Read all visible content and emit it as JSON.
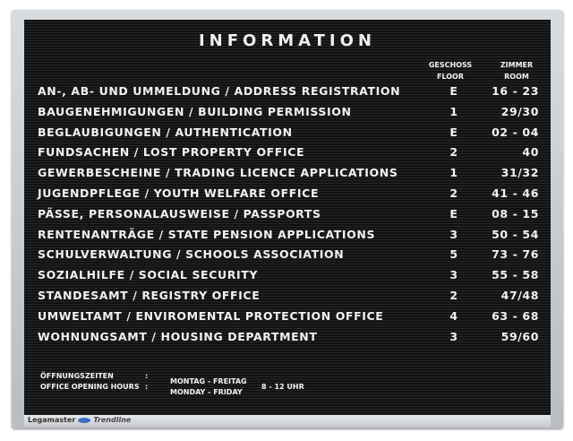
{
  "title": "INFORMATION",
  "headers": {
    "floor": [
      "GESCHOSS",
      "FLOOR"
    ],
    "room": [
      "ZIMMER",
      "ROOM"
    ]
  },
  "rows": [
    {
      "name": "AN-, AB- UND UMMELDUNG / ADDRESS REGISTRATION",
      "floor": "E",
      "room": "16 - 23"
    },
    {
      "name": "BAUGENEHMIGUNGEN / BUILDING PERMISSION",
      "floor": "1",
      "room": "29/30"
    },
    {
      "name": "BEGLAUBIGUNGEN / AUTHENTICATION",
      "floor": "E",
      "room": "02 - 04"
    },
    {
      "name": "FUNDSACHEN / LOST PROPERTY OFFICE",
      "floor": "2",
      "room": "40"
    },
    {
      "name": "GEWERBESCHEINE / TRADING LICENCE APPLICATIONS",
      "floor": "1",
      "room": "31/32"
    },
    {
      "name": "JUGENDPFLEGE / YOUTH WELFARE OFFICE",
      "floor": "2",
      "room": "41 - 46"
    },
    {
      "name": "PÄSSE, PERSONALAUSWEISE / PASSPORTS",
      "floor": "E",
      "room": "08 - 15"
    },
    {
      "name": "RENTENANTRÄGE / STATE PENSION APPLICATIONS",
      "floor": "3",
      "room": "50 - 54"
    },
    {
      "name": "SCHULVERWALTUNG / SCHOOLS ASSOCIATION",
      "floor": "5",
      "room": "73 - 76"
    },
    {
      "name": "SOZIALHILFE / SOCIAL SECURITY",
      "floor": "3",
      "room": "55 - 58"
    },
    {
      "name": "STANDESAMT / REGISTRY OFFICE",
      "floor": "2",
      "room": "47/48"
    },
    {
      "name": "UMWELTAMT / ENVIROMENTAL PROTECTION OFFICE",
      "floor": "4",
      "room": "63 - 68"
    },
    {
      "name": "WOHNUNGSAMT / HOUSING DEPARTMENT",
      "floor": "3",
      "room": "59/60"
    }
  ],
  "footer": {
    "label_de": "ÖFFNUNGSZEITEN",
    "label_en": "OFFICE OPENING HOURS",
    "sep": ":",
    "days_de": "MONTAG - FREITAG",
    "days_en": "MONDAY - FRIDAY",
    "hours": "8 - 12 UHR"
  },
  "brand": {
    "name_a": "Legamaster",
    "name_b": "Trendline",
    "color": "#3a6fc6"
  }
}
